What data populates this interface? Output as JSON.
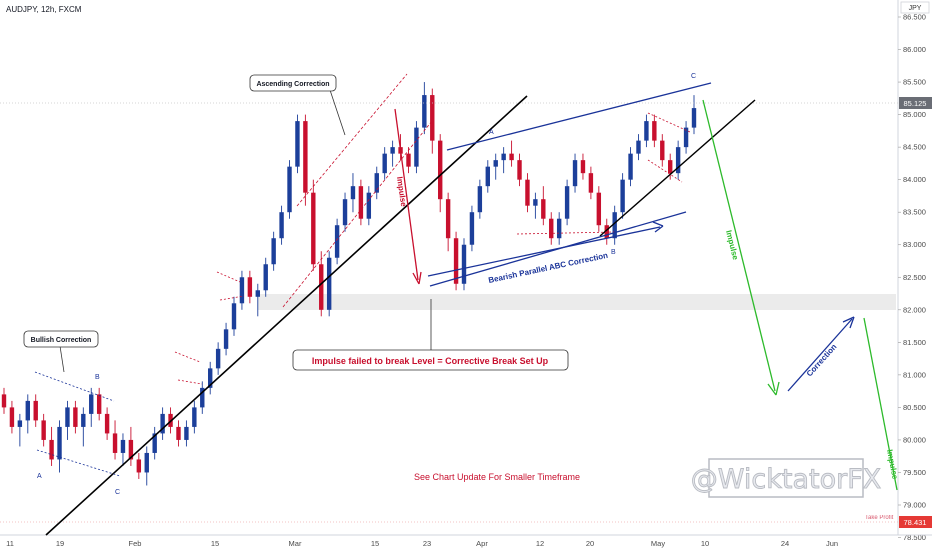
{
  "header": {
    "symbol": "AUDJPY, 12h, FXCM"
  },
  "axis": {
    "currency": "JPY"
  },
  "colors": {
    "up": "#1c3f9a",
    "down": "#c8102e",
    "trendline": "#000000",
    "channel": "#1a3399",
    "green": "#2dba2b",
    "red": "#c8102e"
  },
  "price_badges": {
    "last": "85.125",
    "take_profit_label": "Take Profit",
    "take_profit": "78.431"
  },
  "annotations": {
    "bullish_correction": "Bullish Correction",
    "ascending_correction": "Ascending Correction",
    "impulse_failed": "Impulse failed to break Level = Corrective Break Set Up",
    "chart_update": "See Chart Update For Smaller Timeframe",
    "bearish_channel": "Bearish Parallel ABC Correction",
    "impulse_red": "Impulse",
    "impulse_green_1": "Impulse",
    "impulse_green_2": "Impulse",
    "correction_blue": "Correction",
    "wave_a1": "A",
    "wave_b1": "B",
    "wave_c1": "C",
    "wave_a2": "A",
    "wave_b2": "B",
    "wave_c2": "C"
  },
  "watermark": "@WicktatorFX",
  "chart_data": {
    "type": "candlestick",
    "title": "AUDJPY, 12h, FXCM",
    "ylabel": "JPY",
    "ylim": [
      78.25,
      86.75
    ],
    "yticks": [
      "86.500",
      "86.000",
      "85.500",
      "85.000",
      "84.500",
      "84.000",
      "83.500",
      "83.000",
      "82.500",
      "82.000",
      "81.500",
      "81.000",
      "80.500",
      "80.000",
      "79.500",
      "79.000",
      "78.500"
    ],
    "xticks": [
      "11",
      "19",
      "Feb",
      "15",
      "Mar",
      "15",
      "23",
      "Apr",
      "12",
      "20",
      "May",
      "10",
      "24",
      "Jun"
    ],
    "candles": [
      [
        80.7,
        80.8,
        80.4,
        80.5
      ],
      [
        80.5,
        80.6,
        80.1,
        80.2
      ],
      [
        80.2,
        80.4,
        79.9,
        80.3
      ],
      [
        80.3,
        80.7,
        80.1,
        80.6
      ],
      [
        80.6,
        80.7,
        80.2,
        80.3
      ],
      [
        80.3,
        80.4,
        79.9,
        80.0
      ],
      [
        80.0,
        80.2,
        79.6,
        79.7
      ],
      [
        79.7,
        80.3,
        79.5,
        80.2
      ],
      [
        80.2,
        80.6,
        80.0,
        80.5
      ],
      [
        80.5,
        80.6,
        80.1,
        80.2
      ],
      [
        80.2,
        80.5,
        79.9,
        80.4
      ],
      [
        80.4,
        80.8,
        80.2,
        80.7
      ],
      [
        80.7,
        80.8,
        80.3,
        80.4
      ],
      [
        80.4,
        80.5,
        80.0,
        80.1
      ],
      [
        80.1,
        80.3,
        79.7,
        79.8
      ],
      [
        79.8,
        80.1,
        79.6,
        80.0
      ],
      [
        80.0,
        80.2,
        79.6,
        79.7
      ],
      [
        79.7,
        79.8,
        79.4,
        79.5
      ],
      [
        79.5,
        79.9,
        79.3,
        79.8
      ],
      [
        79.8,
        80.2,
        79.7,
        80.1
      ],
      [
        80.1,
        80.5,
        80.0,
        80.4
      ],
      [
        80.4,
        80.5,
        80.1,
        80.2
      ],
      [
        80.2,
        80.3,
        79.9,
        80.0
      ],
      [
        80.0,
        80.3,
        79.9,
        80.2
      ],
      [
        80.2,
        80.6,
        80.1,
        80.5
      ],
      [
        80.5,
        80.9,
        80.4,
        80.8
      ],
      [
        80.8,
        81.2,
        80.7,
        81.1
      ],
      [
        81.1,
        81.5,
        81.0,
        81.4
      ],
      [
        81.4,
        81.8,
        81.3,
        81.7
      ],
      [
        81.7,
        82.2,
        81.6,
        82.1
      ],
      [
        82.1,
        82.6,
        82.0,
        82.5
      ],
      [
        82.5,
        82.6,
        82.1,
        82.2
      ],
      [
        82.2,
        82.4,
        81.9,
        82.3
      ],
      [
        82.3,
        82.8,
        82.2,
        82.7
      ],
      [
        82.7,
        83.2,
        82.6,
        83.1
      ],
      [
        83.1,
        83.6,
        83.0,
        83.5
      ],
      [
        83.5,
        84.3,
        83.4,
        84.2
      ],
      [
        84.2,
        85.0,
        84.1,
        84.9
      ],
      [
        84.9,
        85.0,
        83.6,
        83.8
      ],
      [
        83.8,
        84.0,
        82.6,
        82.7
      ],
      [
        82.7,
        82.9,
        81.9,
        82.0
      ],
      [
        82.0,
        82.9,
        81.9,
        82.8
      ],
      [
        82.8,
        83.4,
        82.7,
        83.3
      ],
      [
        83.3,
        83.8,
        83.2,
        83.7
      ],
      [
        83.7,
        84.1,
        83.5,
        83.9
      ],
      [
        83.9,
        84.0,
        83.3,
        83.4
      ],
      [
        83.4,
        83.9,
        83.3,
        83.8
      ],
      [
        83.8,
        84.2,
        83.7,
        84.1
      ],
      [
        84.1,
        84.5,
        84.0,
        84.4
      ],
      [
        84.4,
        84.6,
        84.2,
        84.5
      ],
      [
        84.5,
        84.7,
        84.3,
        84.4
      ],
      [
        84.4,
        84.5,
        84.1,
        84.2
      ],
      [
        84.2,
        84.9,
        84.1,
        84.8
      ],
      [
        84.8,
        85.5,
        84.7,
        85.3
      ],
      [
        85.3,
        85.4,
        84.4,
        84.6
      ],
      [
        84.6,
        84.7,
        83.5,
        83.7
      ],
      [
        83.7,
        83.8,
        82.9,
        83.1
      ],
      [
        83.1,
        83.2,
        82.3,
        82.4
      ],
      [
        82.4,
        83.1,
        82.3,
        83.0
      ],
      [
        83.0,
        83.6,
        82.9,
        83.5
      ],
      [
        83.5,
        84.0,
        83.4,
        83.9
      ],
      [
        83.9,
        84.3,
        83.8,
        84.2
      ],
      [
        84.2,
        84.4,
        84.0,
        84.3
      ],
      [
        84.3,
        84.5,
        84.1,
        84.4
      ],
      [
        84.4,
        84.6,
        84.2,
        84.3
      ],
      [
        84.3,
        84.4,
        83.9,
        84.0
      ],
      [
        84.0,
        84.1,
        83.5,
        83.6
      ],
      [
        83.6,
        83.8,
        83.4,
        83.7
      ],
      [
        83.7,
        83.9,
        83.3,
        83.4
      ],
      [
        83.4,
        83.5,
        83.0,
        83.1
      ],
      [
        83.1,
        83.5,
        83.0,
        83.4
      ],
      [
        83.4,
        84.0,
        83.3,
        83.9
      ],
      [
        83.9,
        84.4,
        83.8,
        84.3
      ],
      [
        84.3,
        84.4,
        84.0,
        84.1
      ],
      [
        84.1,
        84.2,
        83.7,
        83.8
      ],
      [
        83.8,
        83.9,
        83.2,
        83.3
      ],
      [
        83.3,
        83.4,
        83.0,
        83.1
      ],
      [
        83.1,
        83.6,
        83.0,
        83.5
      ],
      [
        83.5,
        84.1,
        83.4,
        84.0
      ],
      [
        84.0,
        84.5,
        83.9,
        84.4
      ],
      [
        84.4,
        84.7,
        84.3,
        84.6
      ],
      [
        84.6,
        85.0,
        84.5,
        84.9
      ],
      [
        84.9,
        85.0,
        84.5,
        84.6
      ],
      [
        84.6,
        84.7,
        84.2,
        84.3
      ],
      [
        84.3,
        84.4,
        84.0,
        84.1
      ],
      [
        84.1,
        84.6,
        84.0,
        84.5
      ],
      [
        84.5,
        84.9,
        84.4,
        84.8
      ],
      [
        84.8,
        85.3,
        84.7,
        85.1
      ]
    ],
    "levels": [
      {
        "name": "Support zone",
        "from": 81.85,
        "to": 82.05
      }
    ]
  }
}
